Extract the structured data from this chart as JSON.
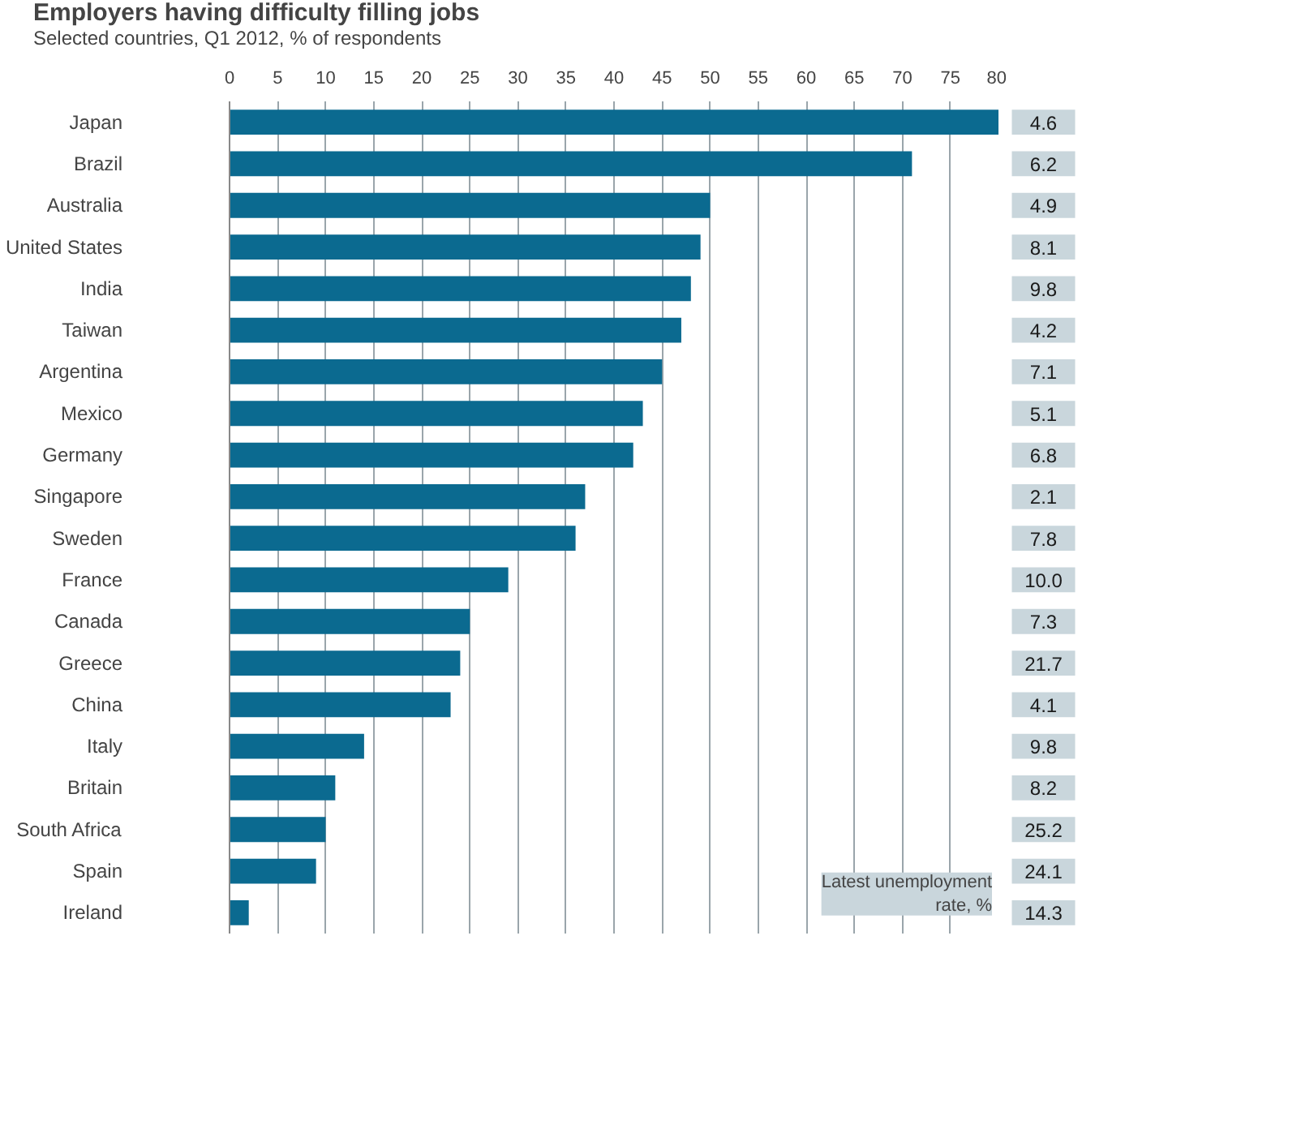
{
  "chart_data": {
    "type": "bar",
    "orientation": "horizontal",
    "title": "Employers having difficulty filling jobs",
    "subtitle": "Selected countries, Q1 2012, % of respondents",
    "categories": [
      "Japan",
      "Brazil",
      "Australia",
      "United States",
      "India",
      "Taiwan",
      "Argentina",
      "Mexico",
      "Germany",
      "Singapore",
      "Sweden",
      "France",
      "Canada",
      "Greece",
      "China",
      "Italy",
      "Britain",
      "South Africa",
      "Spain",
      "Ireland"
    ],
    "values": [
      80,
      71,
      50,
      49,
      48,
      47,
      45,
      43,
      42,
      37,
      36,
      29,
      25,
      24,
      23,
      14,
      11,
      10,
      9,
      2
    ],
    "color": "#0b6a90",
    "xlim": [
      0,
      80
    ],
    "xticks": [
      0,
      5,
      10,
      15,
      20,
      25,
      30,
      35,
      40,
      45,
      50,
      55,
      60,
      65,
      70,
      75,
      80
    ],
    "grid": "x",
    "annotations": [
      "Latest unemployment rate, %",
      "4.6",
      "6.2",
      "4.9",
      "8.1",
      "9.8",
      "4.2",
      "7.1",
      "5.1",
      "6.8",
      "2.1",
      "7.8",
      "10.0",
      "7.3",
      "21.7",
      "4.1",
      "9.8",
      "8.2",
      "25.2",
      "24.1",
      "14.3"
    ]
  }
}
